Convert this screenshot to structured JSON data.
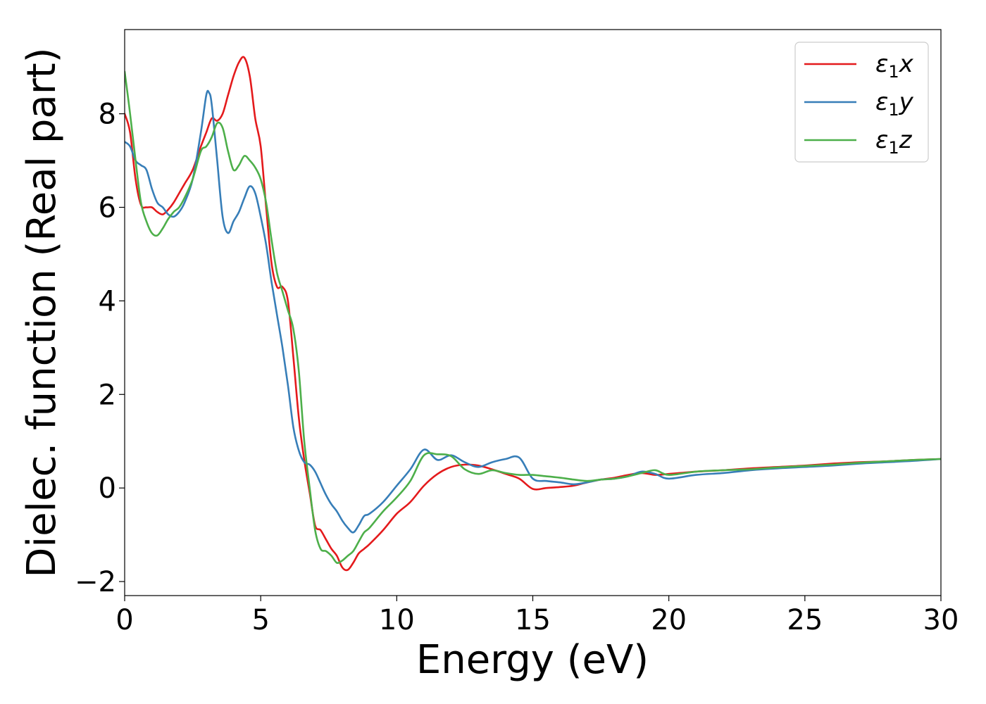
{
  "chart_data": {
    "type": "line",
    "title": "",
    "xlabel": "Energy (eV)",
    "ylabel": "Dielec. function (Real part)",
    "xlim": [
      0,
      30
    ],
    "ylim": [
      -2.3,
      9.8
    ],
    "xticks": [
      0,
      5,
      10,
      15,
      20,
      25,
      30
    ],
    "xtick_labels": [
      "0",
      "5",
      "10",
      "15",
      "20",
      "25",
      "30"
    ],
    "yticks": [
      -2,
      0,
      2,
      4,
      6,
      8
    ],
    "ytick_labels": [
      "−2",
      "0",
      "2",
      "4",
      "6",
      "8"
    ],
    "grid": false,
    "legend_position": "top-right",
    "series": [
      {
        "name": "ε1x",
        "legend_main": "ε",
        "legend_sub": "1",
        "legend_var": "x",
        "color": "#e41a1c",
        "x": [
          0,
          0.2,
          0.4,
          0.6,
          0.8,
          1.0,
          1.2,
          1.4,
          1.6,
          1.8,
          2.0,
          2.2,
          2.5,
          2.8,
          3.0,
          3.2,
          3.4,
          3.6,
          3.8,
          4.0,
          4.2,
          4.4,
          4.6,
          4.8,
          5.0,
          5.2,
          5.4,
          5.6,
          5.8,
          6.0,
          6.2,
          6.4,
          6.6,
          6.8,
          7.0,
          7.2,
          7.4,
          7.6,
          7.8,
          8.0,
          8.2,
          8.4,
          8.6,
          8.8,
          9.0,
          9.5,
          10.0,
          10.5,
          11.0,
          11.5,
          12.0,
          12.5,
          13.0,
          13.5,
          14.0,
          14.5,
          15.0,
          15.5,
          16.0,
          16.5,
          17.0,
          17.5,
          18.0,
          18.5,
          19.0,
          19.5,
          20.0,
          21.0,
          22.0,
          23.0,
          24.0,
          25.0,
          26.0,
          27.0,
          28.0,
          29.0,
          30.0
        ],
        "y": [
          8.0,
          7.6,
          6.6,
          6.05,
          6.0,
          6.0,
          5.9,
          5.85,
          5.95,
          6.1,
          6.3,
          6.5,
          6.8,
          7.3,
          7.6,
          7.9,
          7.85,
          8.0,
          8.4,
          8.8,
          9.1,
          9.2,
          8.8,
          7.9,
          7.3,
          6.0,
          4.8,
          4.3,
          4.3,
          4.0,
          2.8,
          1.5,
          0.6,
          -0.1,
          -0.8,
          -0.9,
          -1.1,
          -1.3,
          -1.45,
          -1.7,
          -1.75,
          -1.6,
          -1.4,
          -1.3,
          -1.2,
          -0.9,
          -0.55,
          -0.3,
          0.05,
          0.3,
          0.45,
          0.5,
          0.48,
          0.4,
          0.3,
          0.2,
          -0.02,
          0.0,
          0.02,
          0.05,
          0.12,
          0.18,
          0.22,
          0.28,
          0.32,
          0.28,
          0.3,
          0.35,
          0.38,
          0.42,
          0.45,
          0.48,
          0.52,
          0.55,
          0.57,
          0.6,
          0.62
        ]
      },
      {
        "name": "ε1y",
        "legend_main": "ε",
        "legend_sub": "1",
        "legend_var": "y",
        "color": "#377eb8",
        "x": [
          0,
          0.2,
          0.4,
          0.6,
          0.8,
          1.0,
          1.2,
          1.4,
          1.6,
          1.8,
          2.0,
          2.2,
          2.5,
          2.8,
          3.0,
          3.1,
          3.2,
          3.4,
          3.6,
          3.8,
          4.0,
          4.2,
          4.4,
          4.6,
          4.8,
          5.0,
          5.2,
          5.4,
          5.6,
          5.8,
          6.0,
          6.2,
          6.4,
          6.6,
          6.8,
          7.0,
          7.2,
          7.4,
          7.6,
          7.8,
          8.0,
          8.2,
          8.4,
          8.6,
          8.8,
          9.0,
          9.5,
          10.0,
          10.5,
          11.0,
          11.5,
          12.0,
          12.5,
          13.0,
          13.5,
          14.0,
          14.5,
          15.0,
          15.5,
          16.0,
          16.5,
          17.0,
          17.5,
          18.0,
          18.5,
          19.0,
          19.5,
          20.0,
          21.0,
          22.0,
          23.0,
          24.0,
          25.0,
          26.0,
          27.0,
          28.0,
          29.0,
          30.0
        ],
        "y": [
          7.4,
          7.3,
          7.0,
          6.9,
          6.8,
          6.4,
          6.1,
          6.0,
          5.85,
          5.8,
          5.9,
          6.1,
          6.6,
          7.6,
          8.4,
          8.45,
          8.2,
          7.0,
          5.8,
          5.45,
          5.7,
          5.9,
          6.2,
          6.45,
          6.3,
          5.8,
          5.2,
          4.4,
          3.7,
          3.0,
          2.2,
          1.3,
          0.8,
          0.55,
          0.5,
          0.35,
          0.1,
          -0.15,
          -0.35,
          -0.5,
          -0.7,
          -0.85,
          -0.95,
          -0.8,
          -0.6,
          -0.55,
          -0.3,
          0.05,
          0.4,
          0.82,
          0.6,
          0.7,
          0.55,
          0.45,
          0.55,
          0.62,
          0.65,
          0.2,
          0.15,
          0.12,
          0.08,
          0.12,
          0.18,
          0.2,
          0.25,
          0.35,
          0.3,
          0.2,
          0.28,
          0.32,
          0.38,
          0.42,
          0.45,
          0.48,
          0.52,
          0.55,
          0.58,
          0.62
        ]
      },
      {
        "name": "ε1z",
        "legend_main": "ε",
        "legend_sub": "1",
        "legend_var": "z",
        "color": "#4daf4a",
        "x": [
          0,
          0.2,
          0.4,
          0.6,
          0.8,
          1.0,
          1.2,
          1.4,
          1.6,
          1.8,
          2.0,
          2.2,
          2.5,
          2.8,
          3.0,
          3.2,
          3.4,
          3.6,
          3.8,
          4.0,
          4.2,
          4.4,
          4.6,
          4.8,
          5.0,
          5.2,
          5.4,
          5.6,
          5.8,
          6.0,
          6.2,
          6.4,
          6.6,
          6.8,
          7.0,
          7.2,
          7.4,
          7.6,
          7.8,
          8.0,
          8.2,
          8.4,
          8.6,
          8.8,
          9.0,
          9.5,
          10.0,
          10.5,
          11.0,
          11.5,
          12.0,
          12.5,
          13.0,
          13.5,
          14.0,
          14.5,
          15.0,
          15.5,
          16.0,
          16.5,
          17.0,
          17.5,
          18.0,
          18.5,
          19.0,
          19.5,
          20.0,
          21.0,
          22.0,
          23.0,
          24.0,
          25.0,
          26.0,
          27.0,
          28.0,
          29.0,
          30.0
        ],
        "y": [
          8.9,
          8.0,
          7.0,
          6.1,
          5.7,
          5.45,
          5.4,
          5.55,
          5.75,
          5.9,
          6.0,
          6.2,
          6.6,
          7.2,
          7.3,
          7.5,
          7.8,
          7.7,
          7.2,
          6.8,
          6.9,
          7.1,
          7.0,
          6.85,
          6.6,
          6.1,
          5.3,
          4.6,
          4.2,
          3.8,
          3.4,
          2.5,
          1.0,
          0.0,
          -0.9,
          -1.3,
          -1.35,
          -1.45,
          -1.6,
          -1.55,
          -1.45,
          -1.35,
          -1.15,
          -0.95,
          -0.85,
          -0.5,
          -0.2,
          0.15,
          0.7,
          0.72,
          0.68,
          0.4,
          0.3,
          0.38,
          0.32,
          0.28,
          0.28,
          0.25,
          0.22,
          0.18,
          0.15,
          0.18,
          0.2,
          0.25,
          0.32,
          0.38,
          0.28,
          0.35,
          0.38,
          0.4,
          0.44,
          0.47,
          0.5,
          0.54,
          0.57,
          0.6,
          0.62
        ]
      }
    ]
  }
}
